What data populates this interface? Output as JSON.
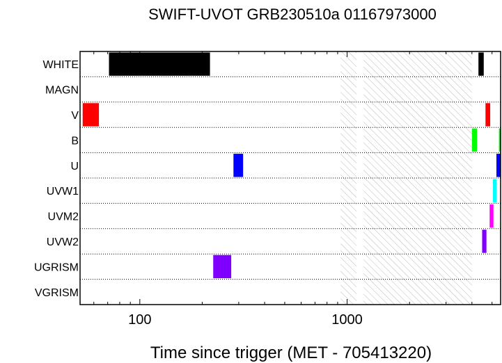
{
  "chart_data": {
    "type": "timeline",
    "title": "SWIFT-UVOT GRB230510a 01167973000",
    "xlabel": "Time since trigger (MET - 705413220)",
    "ylabel": "",
    "xscale": "log",
    "xlim": [
      51.5,
      5500
    ],
    "grid": "dotted horizontal lines between filters",
    "filters": [
      "WHITE",
      "MAGN",
      "V",
      "B",
      "U",
      "UVW1",
      "UVM2",
      "UVW2",
      "UGRISM",
      "VGRISM"
    ],
    "x_ticks": [
      100,
      1000
    ],
    "x_tick_labels": [
      "100",
      "1000"
    ],
    "excluded_intervals": [
      [
        930,
        1110
      ],
      [
        1200,
        4000
      ]
    ],
    "exposures": [
      {
        "filter": "WHITE",
        "start": 71,
        "end": 218,
        "color": "#000000"
      },
      {
        "filter": "WHITE",
        "start": 4300,
        "end": 4560,
        "color": "#000000"
      },
      {
        "filter": "V",
        "start": 53,
        "end": 63.5,
        "color": "#ff0000"
      },
      {
        "filter": "V",
        "start": 4650,
        "end": 4900,
        "color": "#ff0000"
      },
      {
        "filter": "B",
        "start": 4000,
        "end": 4230,
        "color": "#00ff00"
      },
      {
        "filter": "B",
        "start": 5400,
        "end": 5500,
        "color": "#00ff00"
      },
      {
        "filter": "U",
        "start": 283,
        "end": 315,
        "color": "#0000ff"
      },
      {
        "filter": "U",
        "start": 5250,
        "end": 5480,
        "color": "#0000ff"
      },
      {
        "filter": "UVW1",
        "start": 5050,
        "end": 5260,
        "color": "#00ffff"
      },
      {
        "filter": "UVM2",
        "start": 4870,
        "end": 5080,
        "color": "#ff00ff"
      },
      {
        "filter": "UVW2",
        "start": 4480,
        "end": 4700,
        "color": "#8000ff"
      },
      {
        "filter": "UGRISM",
        "start": 226,
        "end": 276,
        "color": "#8000ff"
      }
    ]
  }
}
